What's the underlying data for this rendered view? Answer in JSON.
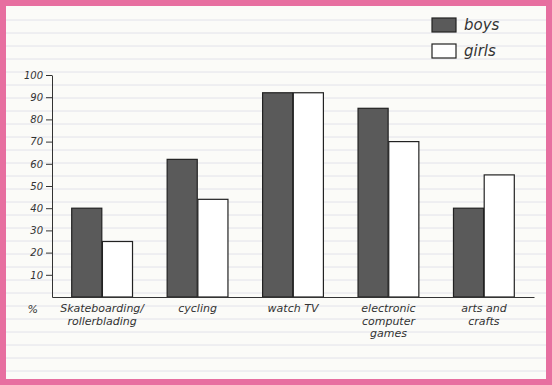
{
  "chart_data": {
    "type": "bar",
    "categories": [
      "Skateboarding/ rollerblading",
      "cycling",
      "watch TV",
      "electronic computer games",
      "arts and crafts"
    ],
    "series": [
      {
        "name": "boys",
        "color": "#5a5a5a",
        "values": [
          40,
          62,
          92,
          85,
          40
        ]
      },
      {
        "name": "girls",
        "color": "#ffffff",
        "values": [
          25,
          44,
          92,
          70,
          55
        ]
      }
    ],
    "y_label": "%",
    "ylim": [
      0,
      100
    ],
    "yticks": [
      10,
      20,
      30,
      40,
      50,
      60,
      70,
      80,
      90,
      100
    ],
    "grid": false,
    "legend": "upper right"
  }
}
